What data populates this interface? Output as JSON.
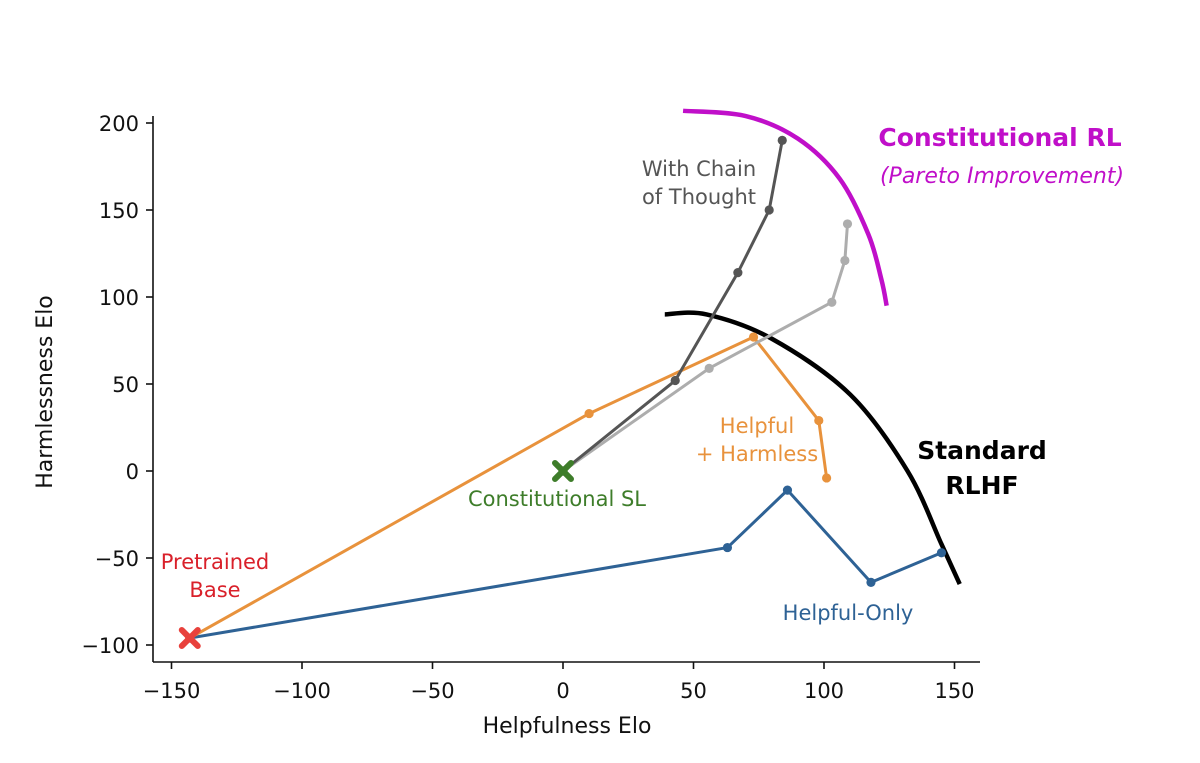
{
  "chart_data": {
    "type": "line",
    "title": "",
    "xlabel": "Helpfulness Elo",
    "ylabel": "Harmlessness Elo",
    "xlim": [
      -158,
      160
    ],
    "ylim": [
      -110,
      205
    ],
    "xticks": [
      -150,
      -100,
      -50,
      0,
      50,
      100,
      150
    ],
    "yticks": [
      200,
      150,
      100,
      50,
      0,
      -50,
      -100
    ],
    "xtick_labels": [
      "−150",
      "−100",
      "−50",
      "0",
      "50",
      "100",
      "150"
    ],
    "ytick_labels": [
      "200",
      "150",
      "100",
      "50",
      "0",
      "−50",
      "−100"
    ],
    "grid": false,
    "series": [
      {
        "key": "helpful_only",
        "color": "#2e6295",
        "points": [
          [
            -143,
            -96
          ],
          [
            63,
            -44
          ],
          [
            86,
            -11
          ],
          [
            118,
            -64
          ],
          [
            145,
            -47
          ]
        ]
      },
      {
        "key": "helpful_harmless",
        "color": "#e8923c",
        "points": [
          [
            -143,
            -96
          ],
          [
            10,
            33
          ],
          [
            73,
            77
          ],
          [
            98,
            29
          ],
          [
            101,
            -4
          ]
        ]
      },
      {
        "key": "constitutional_rl",
        "color": "#adadad",
        "points": [
          [
            0,
            0
          ],
          [
            56,
            59
          ],
          [
            103,
            97
          ],
          [
            108,
            121
          ],
          [
            109,
            142
          ]
        ]
      },
      {
        "key": "chain_of_thought",
        "color": "#555555",
        "points": [
          [
            0,
            0
          ],
          [
            43,
            52
          ],
          [
            67,
            114
          ],
          [
            79,
            150
          ],
          [
            84,
            190
          ]
        ]
      }
    ],
    "markers": [
      {
        "key": "pretrained_base",
        "x": -143,
        "y": -96,
        "shape": "X",
        "color": "#e8413c"
      },
      {
        "key": "constitutional_sl",
        "x": 0,
        "y": 0,
        "shape": "X",
        "color": "#3e7d2a"
      }
    ],
    "frontiers": [
      {
        "key": "standard_rlhf",
        "color": "#000000",
        "points": [
          [
            39,
            90
          ],
          [
            55,
            90
          ],
          [
            80,
            76
          ],
          [
            110,
            44
          ],
          [
            132,
            0
          ],
          [
            145,
            -42
          ],
          [
            152,
            -65
          ]
        ]
      },
      {
        "key": "constitutional_rl_frontier",
        "color": "#c00fc9",
        "points": [
          [
            46,
            207
          ],
          [
            70,
            204
          ],
          [
            90,
            191
          ],
          [
            106,
            168
          ],
          [
            117,
            136
          ],
          [
            122,
            110
          ],
          [
            124,
            95
          ]
        ]
      }
    ],
    "annotations": {
      "pretrained_base_line1": "Pretrained",
      "pretrained_base_line2": "Base",
      "constitutional_sl": "Constitutional SL",
      "helpful_only": "Helpful-Only",
      "helpful_harmless_line1": "Helpful",
      "helpful_harmless_line2": "+ Harmless",
      "chain_of_thought_line1": "With Chain",
      "chain_of_thought_line2": "of Thought",
      "standard_rlhf_line1": "Standard",
      "standard_rlhf_line2": "RLHF",
      "constitutional_rl": "Constitutional RL",
      "pareto_improvement": "(Pareto Improvement)"
    },
    "annotation_colors": {
      "pretrained_base": "#d9202a",
      "constitutional_sl": "#3e7d2a",
      "helpful_only": "#2e6295",
      "helpful_harmless": "#e8923c",
      "chain_of_thought": "#555555",
      "standard_rlhf": "#000000",
      "constitutional_rl": "#c00fc9"
    }
  }
}
